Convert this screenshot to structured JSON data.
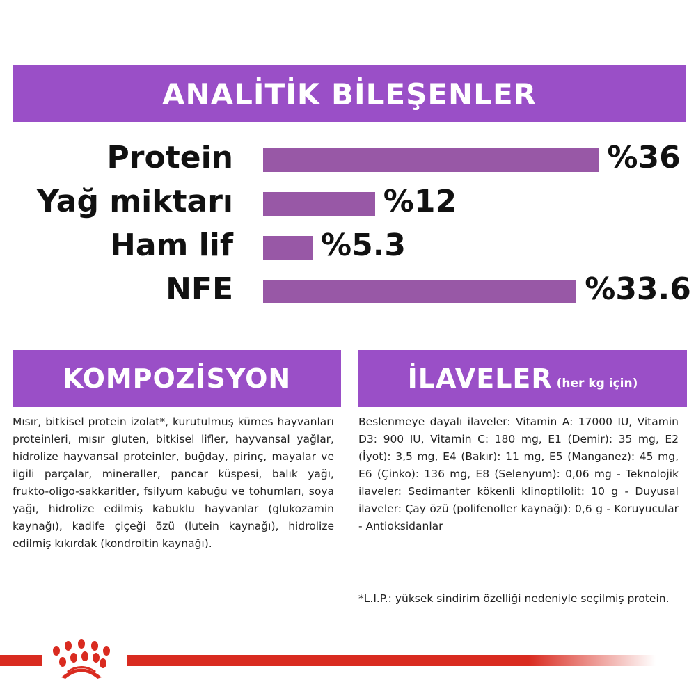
{
  "header": {
    "title": "ANALİTİK BİLEŞENLER"
  },
  "chart_data": {
    "type": "bar",
    "orientation": "horizontal",
    "categories": [
      "Protein",
      "Yağ miktarı",
      "Ham lif",
      "NFE"
    ],
    "values": [
      36,
      12,
      5.3,
      33.6
    ],
    "value_labels": [
      "%36",
      "%12",
      "%5.3",
      "%33.6"
    ],
    "bar_color": "#9858a6"
  },
  "composition": {
    "title": "KOMPOZİSYON",
    "text": "Mısır, bitkisel protein izolat*, kurutulmuş kümes hayvanları proteinleri, mısır gluten, bitkisel lifler, hayvansal yağlar, hidrolize hayvansal proteinler, buğday, pirinç, mayalar ve ilgili parçalar, mineraller, pancar küspesi, balık yağı, frukto-oligo-sakkaritler, fsilyum kabuğu ve tohumları, soya yağı, hidrolize edilmiş kabuklu hayvanlar (glukozamin kaynağı), kadife çiçeği özü (lutein kaynağı), hidrolize edilmiş kıkırdak (kondroitin kaynağı)."
  },
  "additives": {
    "title": "İLAVELER",
    "subtitle": "(her kg için)",
    "text": "Beslenmeye dayalı ilaveler: Vitamin A: 17000 IU, Vitamin D3: 900 IU, Vitamin C: 180 mg, E1 (Demir): 35 mg, E2 (İyot): 3,5 mg, E4 (Bakır): 11 mg, E5 (Manganez): 45 mg, E6 (Çinko): 136 mg, E8 (Selenyum): 0,06 mg - Teknolojik ilaveler: Sedimanter kökenli klinoptilolit: 10 g - Duyusal ilaveler: Çay özü (polifenoller kaynağı): 0,6 g - Koruyucular - Antioksidanlar",
    "footnote": "*L.I.P.: yüksek sindirim özelliği nedeniyle seçilmiş protein."
  },
  "colors": {
    "banner": "#9a4fc7",
    "bar": "#9858a6",
    "brand_red": "#d92b20"
  }
}
